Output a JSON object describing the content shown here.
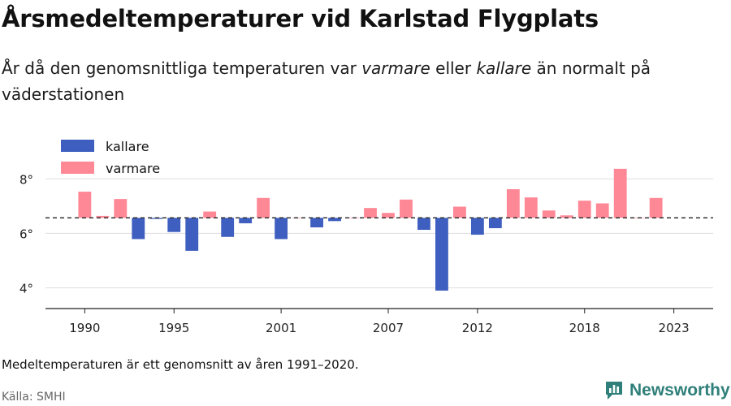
{
  "chart_data": {
    "type": "bar",
    "title": "Årsmedeltemperaturer vid Karlstad Flygplats",
    "subtitle": {
      "part1": "År då den genomsnittliga temperaturen var ",
      "warm_word": "varmare",
      "part2": " eller ",
      "cold_word": "kallare",
      "part3": " än normalt på väderstationen"
    },
    "baseline": 6.57,
    "ylim": [
      3.3,
      9.2
    ],
    "xlim": [
      1987.8,
      2025.2
    ],
    "y_ticks": [
      {
        "value": 4,
        "label": "4°"
      },
      {
        "value": 6,
        "label": "6°"
      },
      {
        "value": 8,
        "label": "8°"
      }
    ],
    "x_ticks": [
      {
        "value": 1990,
        "label": "1990"
      },
      {
        "value": 1995,
        "label": "1995"
      },
      {
        "value": 2001,
        "label": "2001"
      },
      {
        "value": 2007,
        "label": "2007"
      },
      {
        "value": 2012,
        "label": "2012"
      },
      {
        "value": 2018,
        "label": "2018"
      },
      {
        "value": 2023,
        "label": "2023"
      }
    ],
    "legend": {
      "position": "top-left",
      "items": [
        {
          "key": "cold",
          "label": "kallare"
        },
        {
          "key": "warm",
          "label": "varmare"
        }
      ]
    },
    "colors": {
      "cold": "#3e5fbf",
      "warm": "#ff8896",
      "baseline": "#333333",
      "grid": "#dddddd",
      "axis": "#222222"
    },
    "years": [
      1990,
      1991,
      1992,
      1993,
      1994,
      1995,
      1996,
      1997,
      1998,
      1999,
      2000,
      2001,
      2002,
      2003,
      2004,
      2005,
      2006,
      2007,
      2008,
      2009,
      2010,
      2011,
      2012,
      2013,
      2014,
      2015,
      2016,
      2017,
      2018,
      2019,
      2020,
      2021,
      2022
    ],
    "values": [
      7.53,
      6.64,
      7.26,
      5.79,
      6.53,
      6.05,
      5.36,
      6.8,
      5.87,
      6.37,
      7.3,
      5.79,
      6.57,
      6.22,
      6.45,
      6.57,
      6.93,
      6.75,
      7.24,
      6.13,
      3.9,
      6.98,
      5.95,
      6.19,
      7.62,
      7.32,
      6.84,
      6.66,
      7.2,
      7.1,
      8.37,
      6.57,
      7.3
    ]
  },
  "footer": {
    "note": "Medeltemperaturen är ett genomsnitt av åren 1991–2020.",
    "source": "Källa: SMHI",
    "brand": "Newsworthy"
  }
}
